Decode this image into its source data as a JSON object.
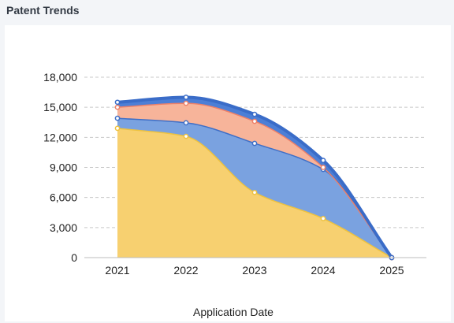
{
  "header": {
    "title": "Patent Trends"
  },
  "chart_data": {
    "type": "area",
    "stacked": true,
    "title": "",
    "xlabel": "Application Date",
    "ylabel": "",
    "x": [
      "2021",
      "2022",
      "2023",
      "2024",
      "2025"
    ],
    "ylim": [
      0,
      18000
    ],
    "yticks": [
      "0",
      "3,000",
      "6,000",
      "9,000",
      "12,000",
      "15,000",
      "18,000"
    ],
    "grid": true,
    "series": [
      {
        "values": [
          12900,
          12100,
          6500,
          3900,
          0
        ],
        "color": "#f7d070",
        "line": "#eec23f"
      },
      {
        "values": [
          1000,
          1350,
          4900,
          4900,
          0
        ],
        "color": "#7aa2e0",
        "line": "#3f6fc7"
      },
      {
        "values": [
          1100,
          1950,
          2200,
          200,
          0
        ],
        "color": "#f7b49a",
        "line": "#ee8068"
      },
      {
        "values": [
          500,
          600,
          700,
          700,
          0
        ],
        "color": "#4d7fd6",
        "line": "#3a6cc8"
      }
    ]
  }
}
